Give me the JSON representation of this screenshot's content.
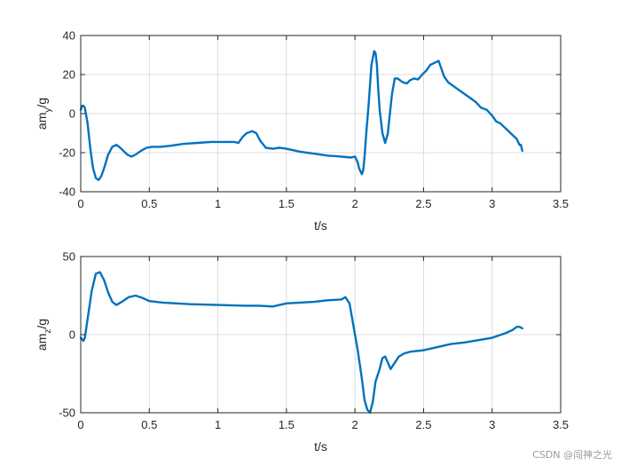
{
  "watermark": "CSDN @闯神之光",
  "colors": {
    "series": "#0072BD",
    "grid": "#dcdcdc",
    "axis": "#262626"
  },
  "chart_data": [
    {
      "type": "line",
      "xlabel": "t/s",
      "ylabel": {
        "base": "am",
        "sub": "y",
        "tail": "/g"
      },
      "xlim": [
        0,
        3.5
      ],
      "ylim": [
        -40,
        40
      ],
      "x_ticks": [
        0,
        0.5,
        1,
        1.5,
        2,
        2.5,
        3,
        3.5
      ],
      "x_tick_labels": [
        "0",
        "0.5",
        "1",
        "1.5",
        "2",
        "2.5",
        "3",
        "3.5"
      ],
      "y_ticks": [
        -40,
        -20,
        0,
        20,
        40
      ],
      "y_tick_labels": [
        "-40",
        "-20",
        "0",
        "20",
        "40"
      ],
      "grid": true,
      "series": [
        {
          "x": [
            0,
            0.01,
            0.02,
            0.03,
            0.05,
            0.07,
            0.09,
            0.11,
            0.13,
            0.15,
            0.17,
            0.2,
            0.23,
            0.26,
            0.28,
            0.31,
            0.34,
            0.37,
            0.4,
            0.44,
            0.48,
            0.52,
            0.58,
            0.65,
            0.75,
            0.85,
            0.95,
            1.05,
            1.12,
            1.15,
            1.16,
            1.18,
            1.21,
            1.25,
            1.28,
            1.31,
            1.35,
            1.4,
            1.45,
            1.5,
            1.6,
            1.7,
            1.8,
            1.9,
            1.97,
            2.0,
            2.02,
            2.03,
            2.05,
            2.06,
            2.07,
            2.08,
            2.1,
            2.12,
            2.14,
            2.15,
            2.16,
            2.17,
            2.18,
            2.2,
            2.22,
            2.24,
            2.25,
            2.27,
            2.29,
            2.31,
            2.33,
            2.35,
            2.38,
            2.4,
            2.43,
            2.46,
            2.49,
            2.52,
            2.55,
            2.58,
            2.61,
            2.63,
            2.65,
            2.68,
            2.72,
            2.76,
            2.8,
            2.84,
            2.88,
            2.92,
            2.96,
            3.0,
            3.03,
            3.06,
            3.09,
            3.12,
            3.15,
            3.18,
            3.2,
            3.21,
            3.22
          ],
          "y": [
            2,
            4,
            4,
            3,
            -5,
            -18,
            -28,
            -33,
            -34,
            -32,
            -28,
            -21,
            -17,
            -16,
            -17,
            -19,
            -21,
            -22,
            -21,
            -19,
            -17.5,
            -17,
            -17,
            -16.5,
            -15.5,
            -15,
            -14.5,
            -14.5,
            -14.5,
            -15,
            -14,
            -12,
            -10,
            -9,
            -10,
            -14,
            -17.5,
            -18,
            -17.5,
            -18,
            -19.5,
            -20.5,
            -21.5,
            -22,
            -22.5,
            -22,
            -25,
            -28,
            -31,
            -29,
            -22,
            -12,
            5,
            25,
            32,
            31,
            25,
            12,
            2,
            -10,
            -15,
            -10,
            -3,
            10,
            18,
            18,
            17,
            16,
            15.5,
            17,
            18,
            17.5,
            20,
            22,
            25,
            26,
            27,
            23,
            19,
            16,
            14,
            12,
            10,
            8,
            6,
            3,
            2,
            -1,
            -4,
            -5,
            -7,
            -9,
            -11,
            -13,
            -16,
            -16,
            -19
          ]
        }
      ]
    },
    {
      "type": "line",
      "xlabel": "t/s",
      "ylabel": {
        "base": "am",
        "sub": "z",
        "tail": "/g"
      },
      "xlim": [
        0,
        3.5
      ],
      "ylim": [
        -50,
        50
      ],
      "x_ticks": [
        0,
        0.5,
        1,
        1.5,
        2,
        2.5,
        3,
        3.5
      ],
      "x_tick_labels": [
        "0",
        "0.5",
        "1",
        "1.5",
        "2",
        "2.5",
        "3",
        "3.5"
      ],
      "y_ticks": [
        -50,
        0,
        50
      ],
      "y_tick_labels": [
        "-50",
        "0",
        "50"
      ],
      "grid": true,
      "series": [
        {
          "x": [
            0,
            0.02,
            0.03,
            0.05,
            0.08,
            0.11,
            0.14,
            0.17,
            0.2,
            0.23,
            0.26,
            0.3,
            0.35,
            0.4,
            0.45,
            0.5,
            0.6,
            0.7,
            0.8,
            1.0,
            1.2,
            1.3,
            1.4,
            1.5,
            1.6,
            1.7,
            1.8,
            1.9,
            1.93,
            1.96,
            1.99,
            2.02,
            2.05,
            2.07,
            2.09,
            2.11,
            2.13,
            2.15,
            2.18,
            2.2,
            2.22,
            2.24,
            2.26,
            2.29,
            2.32,
            2.36,
            2.4,
            2.45,
            2.5,
            2.55,
            2.6,
            2.7,
            2.8,
            2.9,
            3.0,
            3.1,
            3.15,
            3.18,
            3.2,
            3.22
          ],
          "y": [
            -2,
            -4,
            -2,
            10,
            28,
            39,
            40,
            35,
            27,
            21,
            19,
            21,
            24,
            25,
            23.5,
            21.5,
            20.5,
            20,
            19.5,
            19,
            18.5,
            18.5,
            18,
            20,
            20.5,
            21,
            22,
            22.5,
            24,
            20,
            5,
            -10,
            -28,
            -42,
            -48,
            -50,
            -43,
            -30,
            -22,
            -15,
            -14,
            -18,
            -22,
            -18,
            -14,
            -12,
            -11,
            -10.5,
            -10,
            -9,
            -8,
            -6,
            -5,
            -3.5,
            -2,
            1,
            3,
            5,
            5,
            4
          ]
        }
      ]
    }
  ]
}
